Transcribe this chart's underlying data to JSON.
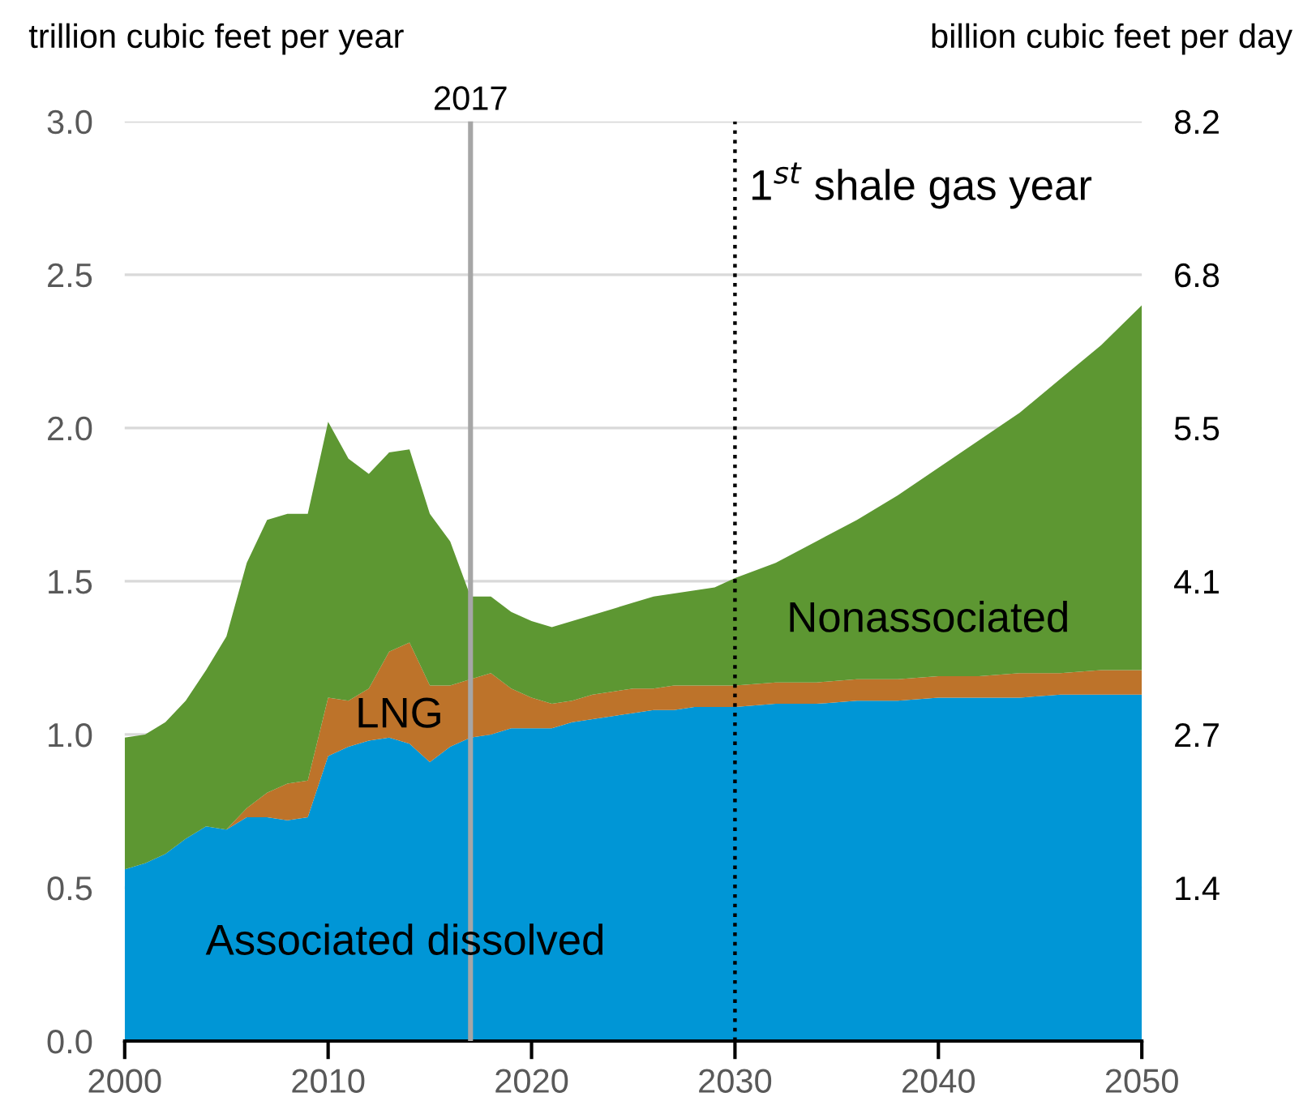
{
  "chart_data": {
    "type": "area",
    "stacked": true,
    "ylabel": "trillion cubic feet per year",
    "y2label": "billion cubic feet per day",
    "x": [
      2000,
      2001,
      2002,
      2003,
      2004,
      2005,
      2006,
      2007,
      2008,
      2009,
      2010,
      2011,
      2012,
      2013,
      2014,
      2015,
      2016,
      2017,
      2018,
      2019,
      2020,
      2021,
      2022,
      2023,
      2024,
      2025,
      2026,
      2027,
      2028,
      2029,
      2030,
      2032,
      2034,
      2036,
      2038,
      2040,
      2042,
      2044,
      2046,
      2048,
      2050
    ],
    "series": [
      {
        "name": "Associated dissolved",
        "color": "#0096d6",
        "values": [
          0.56,
          0.58,
          0.61,
          0.66,
          0.7,
          0.69,
          0.73,
          0.73,
          0.72,
          0.73,
          0.93,
          0.96,
          0.98,
          0.99,
          0.97,
          0.91,
          0.96,
          0.99,
          1.0,
          1.02,
          1.02,
          1.02,
          1.04,
          1.05,
          1.06,
          1.07,
          1.08,
          1.08,
          1.09,
          1.09,
          1.09,
          1.1,
          1.1,
          1.11,
          1.11,
          1.12,
          1.12,
          1.12,
          1.13,
          1.13,
          1.13
        ]
      },
      {
        "name": "LNG",
        "color": "#bd732a",
        "values": [
          0,
          0,
          0,
          0,
          0,
          0,
          0.03,
          0.08,
          0.12,
          0.12,
          0.19,
          0.15,
          0.17,
          0.28,
          0.33,
          0.25,
          0.2,
          0.19,
          0.2,
          0.13,
          0.1,
          0.08,
          0.07,
          0.08,
          0.08,
          0.08,
          0.07,
          0.08,
          0.07,
          0.07,
          0.07,
          0.07,
          0.07,
          0.07,
          0.07,
          0.07,
          0.07,
          0.08,
          0.07,
          0.08,
          0.08
        ]
      },
      {
        "name": "Nonassociated",
        "color": "#5d9732",
        "values": [
          0.43,
          0.42,
          0.43,
          0.45,
          0.51,
          0.63,
          0.8,
          0.89,
          0.88,
          0.87,
          0.9,
          0.79,
          0.7,
          0.65,
          0.63,
          0.56,
          0.47,
          0.27,
          0.25,
          0.25,
          0.25,
          0.25,
          0.26,
          0.26,
          0.27,
          0.28,
          0.3,
          0.3,
          0.31,
          0.32,
          0.35,
          0.39,
          0.46,
          0.52,
          0.6,
          0.68,
          0.77,
          0.85,
          0.96,
          1.06,
          1.19
        ]
      }
    ],
    "xlim": [
      2000,
      2050
    ],
    "xticks": [
      2000,
      2010,
      2020,
      2030,
      2040,
      2050
    ],
    "ylim": [
      0,
      3.0
    ],
    "yticks": [
      {
        "value": 0,
        "label": "0.0"
      },
      {
        "value": 0.5,
        "label": "0.5"
      },
      {
        "value": 1.0,
        "label": "1.0"
      },
      {
        "value": 1.5,
        "label": "1.5"
      },
      {
        "value": 2.0,
        "label": "2.0"
      },
      {
        "value": 2.5,
        "label": "2.5"
      },
      {
        "value": 3.0,
        "label": "3.0"
      }
    ],
    "y2lim": [
      0,
      8.22
    ],
    "y2ticks": [
      {
        "value": 1.37,
        "label": "1.4"
      },
      {
        "value": 2.74,
        "label": "2.7"
      },
      {
        "value": 4.11,
        "label": "4.1"
      },
      {
        "value": 5.48,
        "label": "5.5"
      },
      {
        "value": 6.85,
        "label": "6.8"
      },
      {
        "value": 8.22,
        "label": "8.2"
      }
    ],
    "ref_lines": [
      {
        "axis": "x",
        "value": 2017,
        "label": "2017",
        "color": "#a6a6a6",
        "line_style": "solid"
      },
      {
        "axis": "x",
        "value": 2030,
        "label": "1$^{st}$ shale gas year",
        "color": "#000000",
        "line_style": "dotted"
      }
    ],
    "grid": "y",
    "legend": false
  }
}
